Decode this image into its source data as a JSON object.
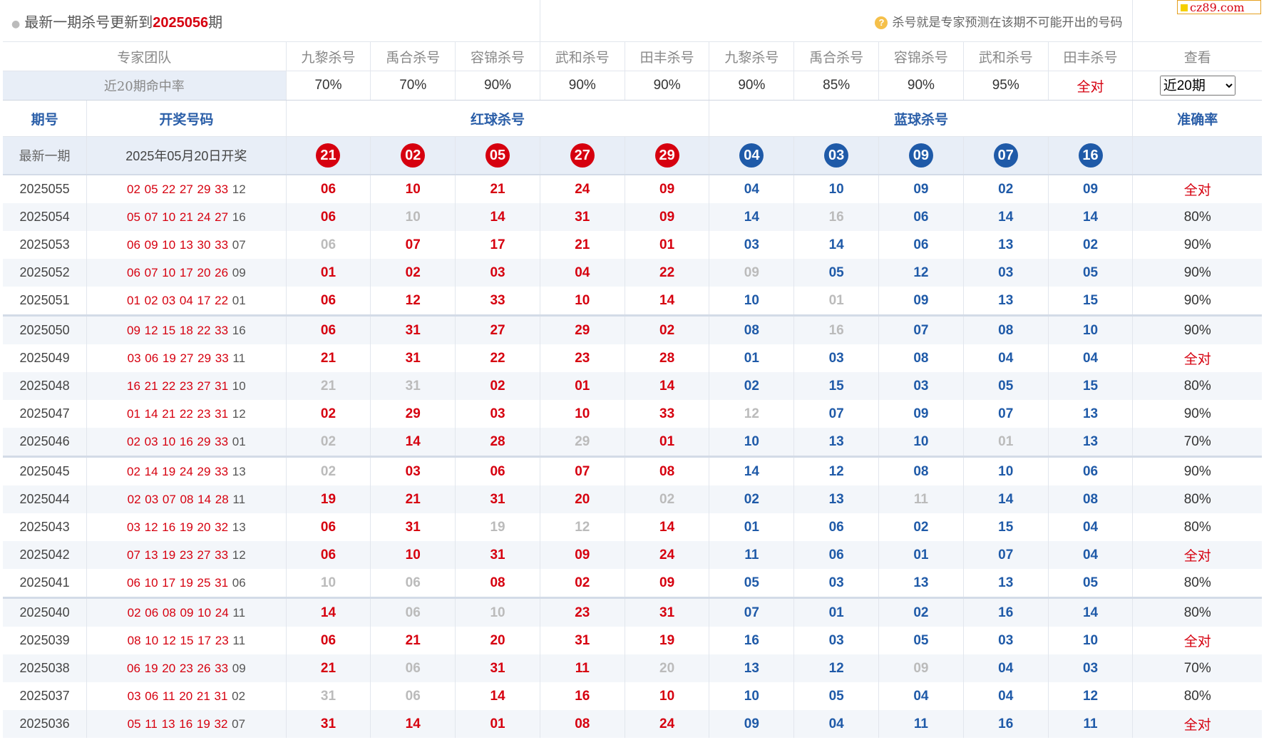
{
  "header": {
    "title_prefix": "最新一期杀号更新到",
    "title_issue": "2025056",
    "title_suffix": "期",
    "hint": "杀号就是专家预测在该期不可能开出的号码"
  },
  "brand": {
    "label": "cz89.com"
  },
  "experts": {
    "team_label": "专家团队",
    "columns": [
      "九黎杀号",
      "禹合杀号",
      "容锦杀号",
      "武和杀号",
      "田丰杀号",
      "九黎杀号",
      "禹合杀号",
      "容锦杀号",
      "武和杀号",
      "田丰杀号"
    ],
    "view_label": "查看",
    "rate_label": "近20期命中率",
    "rates": [
      "70%",
      "70%",
      "90%",
      "90%",
      "90%",
      "90%",
      "85%",
      "90%",
      "95%",
      "全对"
    ],
    "period_select": "近20期",
    "period_options": [
      "近20期"
    ]
  },
  "columns": {
    "issue": "期号",
    "draw": "开奖号码",
    "red": "红球杀号",
    "blue": "蓝球杀号",
    "accuracy": "准确率"
  },
  "latest": {
    "label": "最新一期",
    "date": "2025年05月20日开奖",
    "red_kills": [
      "21",
      "02",
      "05",
      "27",
      "29"
    ],
    "blue_kills": [
      "04",
      "03",
      "09",
      "07",
      "16"
    ]
  },
  "colors": {
    "red": "#d6000f",
    "blue": "#1f5aa8",
    "miss": "#bbbbbb"
  },
  "rows": [
    {
      "issue": "2025055",
      "reds": "02 05 22 27 29 33",
      "blue": "12",
      "kills": [
        "06",
        "10",
        "21",
        "24",
        "09",
        "04",
        "10",
        "09",
        "02",
        "09"
      ],
      "miss": [],
      "acc": "全对"
    },
    {
      "issue": "2025054",
      "reds": "05 07 10 21 24 27",
      "blue": "16",
      "kills": [
        "06",
        "10",
        "14",
        "31",
        "09",
        "14",
        "16",
        "06",
        "14",
        "14"
      ],
      "miss": [
        1,
        6
      ],
      "acc": "80%"
    },
    {
      "issue": "2025053",
      "reds": "06 09 10 13 30 33",
      "blue": "07",
      "kills": [
        "06",
        "07",
        "17",
        "21",
        "01",
        "03",
        "14",
        "06",
        "13",
        "02"
      ],
      "miss": [
        0
      ],
      "acc": "90%"
    },
    {
      "issue": "2025052",
      "reds": "06 07 10 17 20 26",
      "blue": "09",
      "kills": [
        "01",
        "02",
        "03",
        "04",
        "22",
        "09",
        "05",
        "12",
        "03",
        "05"
      ],
      "miss": [
        5
      ],
      "acc": "90%"
    },
    {
      "issue": "2025051",
      "reds": "01 02 03 04 17 22",
      "blue": "01",
      "kills": [
        "06",
        "12",
        "33",
        "10",
        "14",
        "10",
        "01",
        "09",
        "13",
        "15"
      ],
      "miss": [
        6
      ],
      "acc": "90%"
    },
    {
      "issue": "2025050",
      "reds": "09 12 15 18 22 33",
      "blue": "16",
      "kills": [
        "06",
        "31",
        "27",
        "29",
        "02",
        "08",
        "16",
        "07",
        "08",
        "10"
      ],
      "miss": [
        6
      ],
      "acc": "90%"
    },
    {
      "issue": "2025049",
      "reds": "03 06 19 27 29 33",
      "blue": "11",
      "kills": [
        "21",
        "31",
        "22",
        "23",
        "28",
        "01",
        "03",
        "08",
        "04",
        "04"
      ],
      "miss": [],
      "acc": "全对"
    },
    {
      "issue": "2025048",
      "reds": "16 21 22 23 27 31",
      "blue": "10",
      "kills": [
        "21",
        "31",
        "02",
        "01",
        "14",
        "02",
        "15",
        "03",
        "05",
        "15"
      ],
      "miss": [
        0,
        1
      ],
      "acc": "80%"
    },
    {
      "issue": "2025047",
      "reds": "01 14 21 22 23 31",
      "blue": "12",
      "kills": [
        "02",
        "29",
        "03",
        "10",
        "33",
        "12",
        "07",
        "09",
        "07",
        "13"
      ],
      "miss": [
        5
      ],
      "acc": "90%"
    },
    {
      "issue": "2025046",
      "reds": "02 03 10 16 29 33",
      "blue": "01",
      "kills": [
        "02",
        "14",
        "28",
        "29",
        "01",
        "10",
        "13",
        "10",
        "01",
        "13"
      ],
      "miss": [
        0,
        3,
        8
      ],
      "acc": "70%"
    },
    {
      "issue": "2025045",
      "reds": "02 14 19 24 29 33",
      "blue": "13",
      "kills": [
        "02",
        "03",
        "06",
        "07",
        "08",
        "14",
        "12",
        "08",
        "10",
        "06"
      ],
      "miss": [
        0
      ],
      "acc": "90%"
    },
    {
      "issue": "2025044",
      "reds": "02 03 07 08 14 28",
      "blue": "11",
      "kills": [
        "19",
        "21",
        "31",
        "20",
        "02",
        "02",
        "13",
        "11",
        "14",
        "08"
      ],
      "miss": [
        4,
        7
      ],
      "acc": "80%"
    },
    {
      "issue": "2025043",
      "reds": "03 12 16 19 20 32",
      "blue": "13",
      "kills": [
        "06",
        "31",
        "19",
        "12",
        "14",
        "01",
        "06",
        "02",
        "15",
        "04"
      ],
      "miss": [
        2,
        3
      ],
      "acc": "80%"
    },
    {
      "issue": "2025042",
      "reds": "07 13 19 23 27 33",
      "blue": "12",
      "kills": [
        "06",
        "10",
        "31",
        "09",
        "24",
        "11",
        "06",
        "01",
        "07",
        "04"
      ],
      "miss": [],
      "acc": "全对"
    },
    {
      "issue": "2025041",
      "reds": "06 10 17 19 25 31",
      "blue": "06",
      "kills": [
        "10",
        "06",
        "08",
        "02",
        "09",
        "05",
        "03",
        "13",
        "13",
        "05"
      ],
      "miss": [
        0,
        1
      ],
      "acc": "80%"
    },
    {
      "issue": "2025040",
      "reds": "02 06 08 09 10 24",
      "blue": "11",
      "kills": [
        "14",
        "06",
        "10",
        "23",
        "31",
        "07",
        "01",
        "02",
        "16",
        "14"
      ],
      "miss": [
        1,
        2
      ],
      "acc": "80%"
    },
    {
      "issue": "2025039",
      "reds": "08 10 12 15 17 23",
      "blue": "11",
      "kills": [
        "06",
        "21",
        "20",
        "31",
        "19",
        "16",
        "03",
        "05",
        "03",
        "10"
      ],
      "miss": [],
      "acc": "全对"
    },
    {
      "issue": "2025038",
      "reds": "06 19 20 23 26 33",
      "blue": "09",
      "kills": [
        "21",
        "06",
        "31",
        "11",
        "20",
        "13",
        "12",
        "09",
        "04",
        "03"
      ],
      "miss": [
        1,
        4,
        7
      ],
      "acc": "70%"
    },
    {
      "issue": "2025037",
      "reds": "03 06 11 20 21 31",
      "blue": "02",
      "kills": [
        "31",
        "06",
        "14",
        "16",
        "10",
        "10",
        "05",
        "04",
        "04",
        "12"
      ],
      "miss": [
        0,
        1
      ],
      "acc": "80%"
    },
    {
      "issue": "2025036",
      "reds": "05 11 13 16 19 32",
      "blue": "07",
      "kills": [
        "31",
        "14",
        "01",
        "08",
        "24",
        "09",
        "04",
        "11",
        "16",
        "11"
      ],
      "miss": [],
      "acc": "全对"
    }
  ]
}
